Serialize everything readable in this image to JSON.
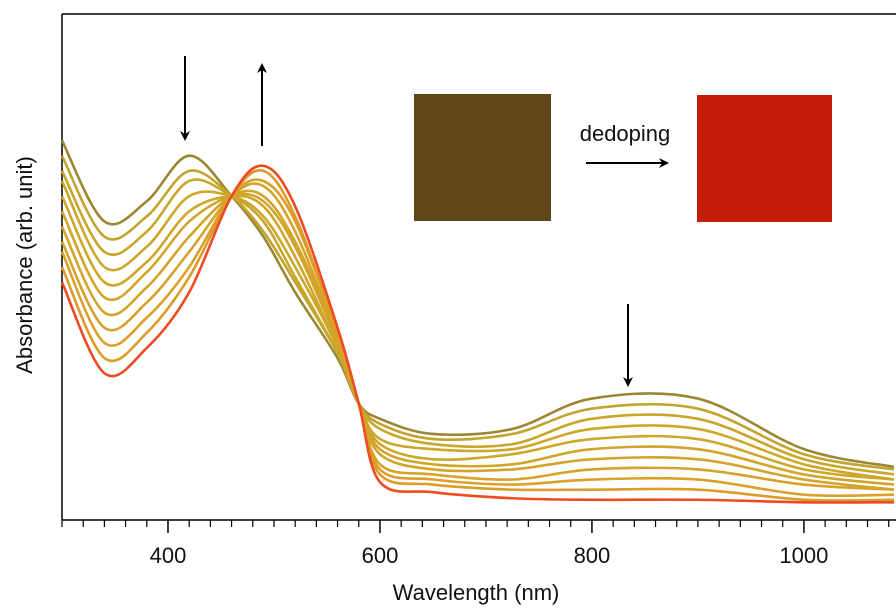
{
  "chart_data": {
    "type": "line",
    "x_label": "Wavelength (nm)",
    "y_label": "Absorbance (arb. unit)",
    "annotation": "dedoping",
    "xlim": [
      300,
      1085
    ],
    "ylim": [
      0,
      1
    ],
    "xticks": [
      400,
      600,
      800,
      1000
    ],
    "xminorticks": [
      300,
      320,
      340,
      360,
      380,
      420,
      440,
      460,
      480,
      500,
      520,
      540,
      560,
      580,
      620,
      640,
      660,
      680,
      700,
      720,
      740,
      760,
      780,
      820,
      840,
      860,
      880,
      900,
      920,
      940,
      960,
      980,
      1020,
      1040,
      1060,
      1080
    ],
    "x": [
      300,
      340,
      380,
      420,
      460,
      490,
      520,
      560,
      580,
      600,
      650,
      725,
      800,
      900,
      1000,
      1085
    ],
    "series": [
      {
        "color": "#9b8632",
        "values": [
          0.75,
          0.59,
          0.63,
          0.72,
          0.64,
          0.56,
          0.45,
          0.32,
          0.23,
          0.2,
          0.17,
          0.18,
          0.24,
          0.24,
          0.14,
          0.105
        ]
      },
      {
        "color": "#c2a42c",
        "values": [
          0.72,
          0.56,
          0.6,
          0.69,
          0.64,
          0.57,
          0.47,
          0.33,
          0.23,
          0.19,
          0.16,
          0.17,
          0.22,
          0.22,
          0.13,
          0.1
        ]
      },
      {
        "color": "#c8a62a",
        "values": [
          0.69,
          0.53,
          0.57,
          0.67,
          0.64,
          0.59,
          0.48,
          0.33,
          0.23,
          0.18,
          0.15,
          0.15,
          0.2,
          0.2,
          0.12,
          0.09
        ]
      },
      {
        "color": "#cba72a",
        "values": [
          0.67,
          0.5,
          0.54,
          0.64,
          0.64,
          0.6,
          0.5,
          0.34,
          0.23,
          0.16,
          0.14,
          0.14,
          0.18,
          0.18,
          0.11,
          0.08
        ]
      },
      {
        "color": "#cea62a",
        "values": [
          0.64,
          0.47,
          0.51,
          0.61,
          0.64,
          0.62,
          0.52,
          0.34,
          0.23,
          0.15,
          0.12,
          0.13,
          0.16,
          0.16,
          0.1,
          0.08
        ]
      },
      {
        "color": "#d1a52a",
        "values": [
          0.61,
          0.44,
          0.49,
          0.59,
          0.64,
          0.63,
          0.54,
          0.35,
          0.23,
          0.14,
          0.11,
          0.11,
          0.14,
          0.14,
          0.09,
          0.07
        ]
      },
      {
        "color": "#d4a42a",
        "values": [
          0.58,
          0.41,
          0.46,
          0.56,
          0.64,
          0.64,
          0.55,
          0.36,
          0.23,
          0.13,
          0.1,
          0.1,
          0.12,
          0.12,
          0.08,
          0.06
        ]
      },
      {
        "color": "#d7a22a",
        "values": [
          0.55,
          0.38,
          0.43,
          0.53,
          0.64,
          0.66,
          0.57,
          0.36,
          0.23,
          0.11,
          0.09,
          0.08,
          0.1,
          0.1,
          0.07,
          0.06
        ]
      },
      {
        "color": "#daa02a",
        "values": [
          0.53,
          0.35,
          0.4,
          0.5,
          0.64,
          0.67,
          0.59,
          0.37,
          0.23,
          0.1,
          0.08,
          0.07,
          0.08,
          0.08,
          0.05,
          0.05
        ]
      },
      {
        "color": "#dc9c2a",
        "values": [
          0.5,
          0.32,
          0.37,
          0.48,
          0.64,
          0.69,
          0.6,
          0.37,
          0.23,
          0.09,
          0.07,
          0.06,
          0.06,
          0.06,
          0.04,
          0.04
        ]
      },
      {
        "color": "#f04a22",
        "values": [
          0.47,
          0.29,
          0.34,
          0.45,
          0.64,
          0.7,
          0.62,
          0.38,
          0.23,
          0.075,
          0.055,
          0.043,
          0.04,
          0.04,
          0.035,
          0.035
        ]
      }
    ]
  }
}
